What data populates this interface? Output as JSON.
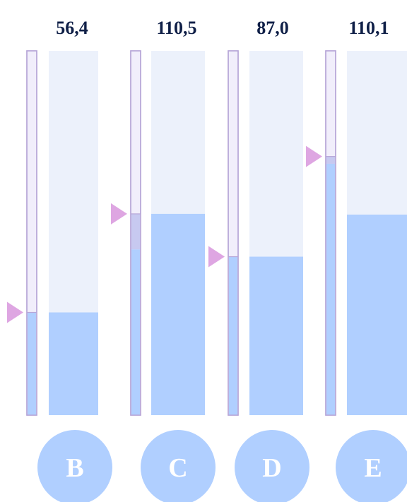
{
  "chart_data": {
    "type": "bar",
    "categories": [
      "B",
      "C",
      "D",
      "E"
    ],
    "values": [
      56.4,
      110.5,
      87.0,
      110.1
    ],
    "value_labels": [
      "56,4",
      "110,5",
      "87,0",
      "110,1"
    ],
    "ylim": [
      0,
      200
    ],
    "marker_values": [
      56.4,
      110.5,
      87.0,
      142.0
    ],
    "thin_fill_values": [
      56.4,
      91.0,
      87.0,
      138.0
    ],
    "colors": {
      "bar_fill": "#b0cfff",
      "bar_track": "#ecf1fb",
      "marker": "#dea6e2",
      "thin_border": "#b7a6d8",
      "thin_track": "#f1eefb",
      "thin_band": "#c7c9f0",
      "label": "#0f1f47",
      "circle_text": "#ffffff"
    }
  }
}
